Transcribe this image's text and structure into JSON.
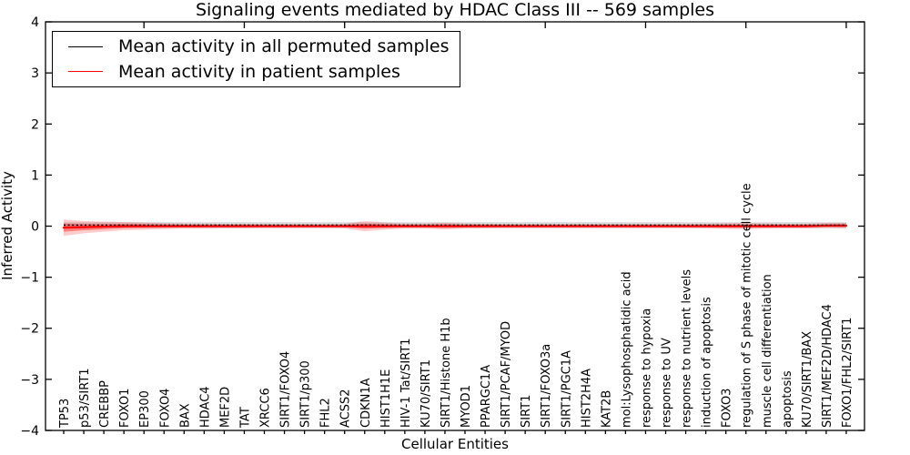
{
  "title": "Signaling events mediated by HDAC Class III -- 569 samples",
  "legend": {
    "entries": [
      {
        "label": "Mean activity in all permuted samples",
        "color": "#000000"
      },
      {
        "label": "Mean activity in patient samples",
        "color": "#ff0000"
      }
    ]
  },
  "chart_data": {
    "type": "line",
    "title": "Signaling events mediated by HDAC Class III -- 569 samples",
    "xlabel": "Cellular Entities",
    "ylabel": "Inferred Activity",
    "ylim": [
      -4,
      4
    ],
    "yticks": [
      -4,
      -3,
      -2,
      -1,
      0,
      1,
      2,
      3,
      4
    ],
    "grid": false,
    "legend_position": "upper left",
    "categories": [
      "TP53",
      "p53/SIRT1",
      "CREBBP",
      "FOXO1",
      "EP300",
      "FOXO4",
      "BAX",
      "HDAC4",
      "MEF2D",
      "TAT",
      "XRCC6",
      "SIRT1/FOXO4",
      "SIRT1/p300",
      "FHL2",
      "ACSS2",
      "CDKN1A",
      "HIST1H1E",
      "HIV-1 Tat/SIRT1",
      "KU70/SIRT1",
      "SIRT1/Histone H1b",
      "MYOD1",
      "PPARGC1A",
      "SIRT1/PCAF/MYOD",
      "SIRT1",
      "SIRT1/FOXO3a",
      "SIRT1/PGC1A",
      "HIST2H4A",
      "KAT2B",
      "mol:Lysophosphatidic acid",
      "response to hypoxia",
      "response to UV",
      "response to nutrient levels",
      "induction of apoptosis",
      "FOXO3",
      "regulation of S phase of mitotic cell cycle",
      "muscle cell differentiation",
      "apoptosis",
      "KU70/SIRT1/BAX",
      "SIRT1/MEF2D/HDAC4",
      "FOXO1/FHL2/SIRT1"
    ],
    "series": [
      {
        "name": "Mean activity in all permuted samples",
        "color": "#000000",
        "style": "dotted",
        "values": [
          0.02,
          0.02,
          0.02,
          0.02,
          0.02,
          0.02,
          0.02,
          0.02,
          0.02,
          0.02,
          0.02,
          0.02,
          0.02,
          0.02,
          0.02,
          0.02,
          0.02,
          0.02,
          0.02,
          0.02,
          0.02,
          0.02,
          0.02,
          0.02,
          0.02,
          0.02,
          0.02,
          0.02,
          0.02,
          0.02,
          0.02,
          0.02,
          0.02,
          0.02,
          0.02,
          0.02,
          0.02,
          0.02,
          0.02,
          0.02
        ]
      },
      {
        "name": "Mean activity in patient samples",
        "color": "#ff0000",
        "style": "solid",
        "values": [
          -0.03,
          -0.02,
          -0.01,
          0,
          0,
          0,
          0,
          0,
          0,
          0,
          0,
          0,
          0,
          0,
          0,
          0,
          0,
          0,
          0,
          0,
          0,
          0,
          0,
          0,
          0,
          0,
          0,
          0,
          0,
          0,
          0,
          0,
          0,
          0,
          0,
          0,
          0,
          0,
          0.01,
          0.01
        ]
      }
    ],
    "bands": [
      {
        "name": "patient-samples-std",
        "color": "#ff0000",
        "half_widths": [
          0.16,
          0.12,
          0.1,
          0.08,
          0.07,
          0.06,
          0.05,
          0.05,
          0.045,
          0.045,
          0.04,
          0.04,
          0.04,
          0.04,
          0.045,
          0.1,
          0.07,
          0.05,
          0.05,
          0.065,
          0.05,
          0.045,
          0.04,
          0.04,
          0.04,
          0.04,
          0.04,
          0.04,
          0.04,
          0.04,
          0.04,
          0.04,
          0.045,
          0.055,
          0.06,
          0.05,
          0.045,
          0.045,
          0.05,
          0.055
        ]
      },
      {
        "name": "permuted-samples-std",
        "color": "#aaaaaa",
        "half_widths": [
          0.055,
          0.055,
          0.055,
          0.055,
          0.055,
          0.055,
          0.055,
          0.055,
          0.055,
          0.055,
          0.055,
          0.055,
          0.055,
          0.055,
          0.055,
          0.055,
          0.055,
          0.055,
          0.055,
          0.055,
          0.055,
          0.055,
          0.055,
          0.055,
          0.055,
          0.055,
          0.055,
          0.055,
          0.055,
          0.055,
          0.055,
          0.055,
          0.055,
          0.055,
          0.055,
          0.055,
          0.055,
          0.055,
          0.055,
          0.055
        ]
      }
    ]
  }
}
